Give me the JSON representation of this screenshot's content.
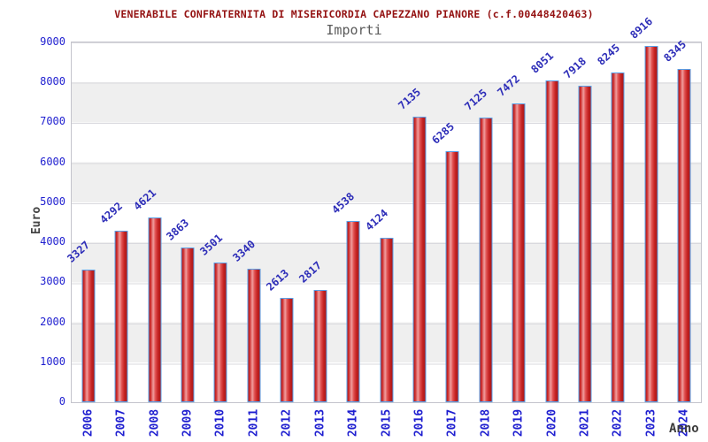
{
  "title": "VENERABILE CONFRATERNITA DI MISERICORDIA CAPEZZANO PIANORE (c.f.00448420463)",
  "subtitle": "Importi",
  "chart_data": {
    "type": "bar",
    "title": "VENERABILE CONFRATERNITA DI MISERICORDIA CAPEZZANO PIANORE (c.f.00448420463)",
    "subtitle": "Importi",
    "xlabel": "Anno",
    "ylabel": "Euro",
    "categories": [
      "2006",
      "2007",
      "2008",
      "2009",
      "2010",
      "2011",
      "2012",
      "2013",
      "2014",
      "2015",
      "2016",
      "2017",
      "2018",
      "2019",
      "2020",
      "2021",
      "2022",
      "2023",
      "2024"
    ],
    "values": [
      3327,
      4292,
      4621,
      3863,
      3501,
      3340,
      2613,
      2817,
      4538,
      4124,
      7135,
      6285,
      7125,
      7472,
      8051,
      7918,
      8245,
      8916,
      8345
    ],
    "ylim": [
      0,
      9000
    ],
    "y_ticks": [
      0,
      1000,
      2000,
      3000,
      4000,
      5000,
      6000,
      7000,
      8000,
      9000
    ],
    "grid": "alternating-horizontal-bands",
    "legend": "none",
    "colors": {
      "title": "#941212",
      "subtitle": "#5a5a5a",
      "tick_labels": "#1f1fd0",
      "value_labels": "#2d2db8",
      "axis_titles": "#404040",
      "bar_fill_dark": "#b01d1d",
      "bar_fill_light": "#f09e9e",
      "bar_border": "#58a0e8",
      "band_gray": "#efefef",
      "plot_border": "#c4c4cc"
    }
  }
}
